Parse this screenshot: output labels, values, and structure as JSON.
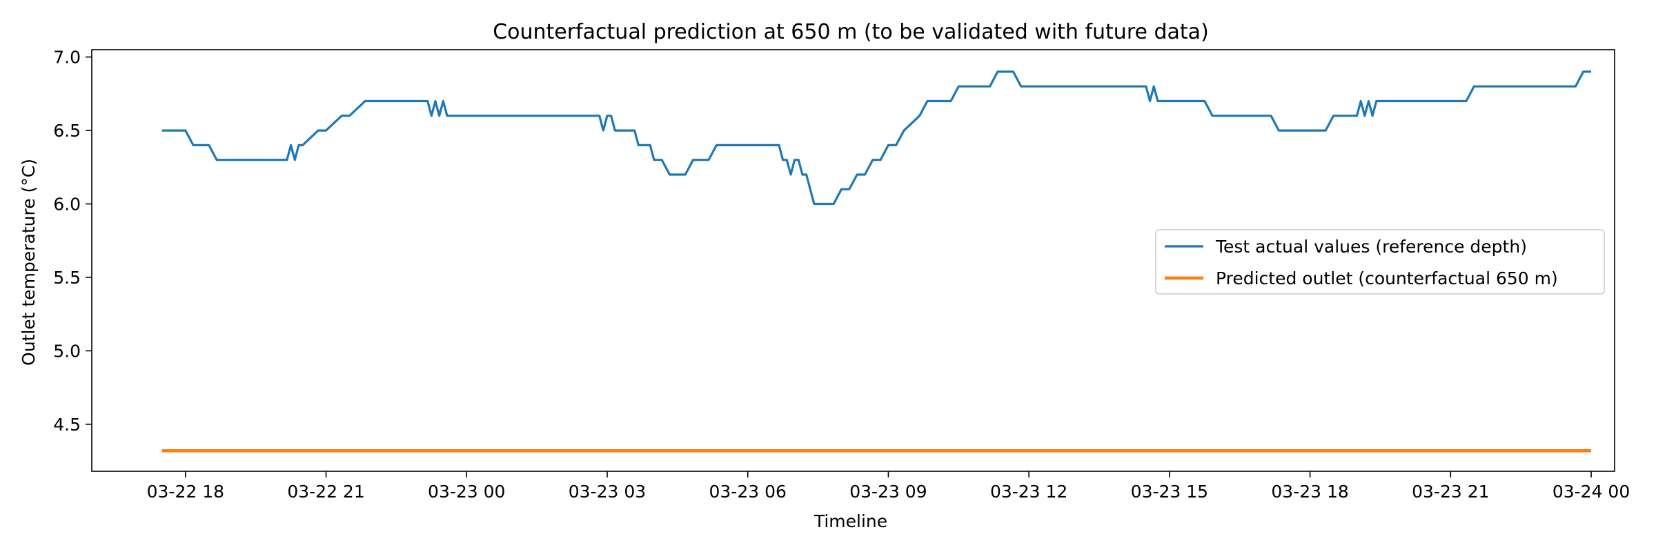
{
  "chart_data": {
    "type": "line",
    "title": "Counterfactual prediction at 650 m (to be validated with future data)",
    "xlabel": "Timeline",
    "ylabel": "Outlet temperature (°C)",
    "xlim": [
      "2024-03-22 16:00",
      "2024-03-24 00:30"
    ],
    "ylim": [
      4.18,
      7.05
    ],
    "x_ticks": [
      {
        "t": "2024-03-22 18:00",
        "label": "03-22 18"
      },
      {
        "t": "2024-03-22 21:00",
        "label": "03-22 21"
      },
      {
        "t": "2024-03-23 00:00",
        "label": "03-23 00"
      },
      {
        "t": "2024-03-23 03:00",
        "label": "03-23 03"
      },
      {
        "t": "2024-03-23 06:00",
        "label": "03-23 06"
      },
      {
        "t": "2024-03-23 09:00",
        "label": "03-23 09"
      },
      {
        "t": "2024-03-23 12:00",
        "label": "03-23 12"
      },
      {
        "t": "2024-03-23 15:00",
        "label": "03-23 15"
      },
      {
        "t": "2024-03-23 18:00",
        "label": "03-23 18"
      },
      {
        "t": "2024-03-23 21:00",
        "label": "03-23 21"
      },
      {
        "t": "2024-03-24 00:00",
        "label": "03-24 00"
      }
    ],
    "y_ticks": [
      {
        "v": 4.5,
        "label": "4.5"
      },
      {
        "v": 5.0,
        "label": "5.0"
      },
      {
        "v": 5.5,
        "label": "5.5"
      },
      {
        "v": 6.0,
        "label": "6.0"
      },
      {
        "v": 6.5,
        "label": "6.5"
      },
      {
        "v": 7.0,
        "label": "7.0"
      }
    ],
    "grid": false,
    "legend_position": "center-right",
    "series": [
      {
        "name": "Test actual values (reference depth)",
        "color": "#1f77b4",
        "x": [
          "2024-03-22 17:30",
          "2024-03-22 18:00",
          "2024-03-22 18:10",
          "2024-03-22 18:30",
          "2024-03-22 18:40",
          "2024-03-22 20:10",
          "2024-03-22 20:15",
          "2024-03-22 20:20",
          "2024-03-22 20:25",
          "2024-03-22 20:30",
          "2024-03-22 20:50",
          "2024-03-22 21:00",
          "2024-03-22 21:20",
          "2024-03-22 21:30",
          "2024-03-22 21:50",
          "2024-03-22 23:10",
          "2024-03-22 23:15",
          "2024-03-22 23:20",
          "2024-03-22 23:25",
          "2024-03-22 23:30",
          "2024-03-22 23:35",
          "2024-03-22 23:40",
          "2024-03-23 02:50",
          "2024-03-23 02:55",
          "2024-03-23 03:00",
          "2024-03-23 03:05",
          "2024-03-23 03:10",
          "2024-03-23 03:35",
          "2024-03-23 03:40",
          "2024-03-23 03:55",
          "2024-03-23 04:00",
          "2024-03-23 04:10",
          "2024-03-23 04:20",
          "2024-03-23 04:40",
          "2024-03-23 04:50",
          "2024-03-23 05:10",
          "2024-03-23 05:20",
          "2024-03-23 06:40",
          "2024-03-23 06:45",
          "2024-03-23 06:50",
          "2024-03-23 06:55",
          "2024-03-23 07:00",
          "2024-03-23 07:05",
          "2024-03-23 07:10",
          "2024-03-23 07:15",
          "2024-03-23 07:25",
          "2024-03-23 07:50",
          "2024-03-23 08:00",
          "2024-03-23 08:10",
          "2024-03-23 08:20",
          "2024-03-23 08:30",
          "2024-03-23 08:40",
          "2024-03-23 08:50",
          "2024-03-23 09:00",
          "2024-03-23 09:10",
          "2024-03-23 09:20",
          "2024-03-23 09:40",
          "2024-03-23 09:50",
          "2024-03-23 10:20",
          "2024-03-23 10:30",
          "2024-03-23 11:10",
          "2024-03-23 11:20",
          "2024-03-23 11:40",
          "2024-03-23 11:50",
          "2024-03-23 14:30",
          "2024-03-23 14:35",
          "2024-03-23 14:40",
          "2024-03-23 14:45",
          "2024-03-23 15:45",
          "2024-03-23 15:55",
          "2024-03-23 17:10",
          "2024-03-23 17:20",
          "2024-03-23 18:20",
          "2024-03-23 18:30",
          "2024-03-23 19:00",
          "2024-03-23 19:05",
          "2024-03-23 19:10",
          "2024-03-23 19:15",
          "2024-03-23 19:20",
          "2024-03-23 19:25",
          "2024-03-23 19:30",
          "2024-03-23 21:20",
          "2024-03-23 21:30",
          "2024-03-23 23:40",
          "2024-03-23 23:50",
          "2024-03-24 00:00"
        ],
        "y": [
          6.5,
          6.5,
          6.4,
          6.4,
          6.3,
          6.3,
          6.4,
          6.3,
          6.4,
          6.4,
          6.5,
          6.5,
          6.6,
          6.6,
          6.7,
          6.7,
          6.6,
          6.7,
          6.6,
          6.7,
          6.6,
          6.6,
          6.6,
          6.5,
          6.6,
          6.6,
          6.5,
          6.5,
          6.4,
          6.4,
          6.3,
          6.3,
          6.2,
          6.2,
          6.3,
          6.3,
          6.4,
          6.4,
          6.3,
          6.3,
          6.2,
          6.3,
          6.3,
          6.2,
          6.2,
          6.0,
          6.0,
          6.1,
          6.1,
          6.2,
          6.2,
          6.3,
          6.3,
          6.4,
          6.4,
          6.5,
          6.6,
          6.7,
          6.7,
          6.8,
          6.8,
          6.9,
          6.9,
          6.8,
          6.8,
          6.7,
          6.8,
          6.7,
          6.7,
          6.6,
          6.6,
          6.5,
          6.5,
          6.6,
          6.6,
          6.7,
          6.6,
          6.7,
          6.6,
          6.7,
          6.7,
          6.7,
          6.8,
          6.8,
          6.9,
          6.9
        ]
      },
      {
        "name": "Predicted outlet (counterfactual 650 m)",
        "color": "#ff7f0e",
        "x": [
          "2024-03-22 17:30",
          "2024-03-24 00:00"
        ],
        "y": [
          4.32,
          4.32
        ]
      }
    ]
  }
}
